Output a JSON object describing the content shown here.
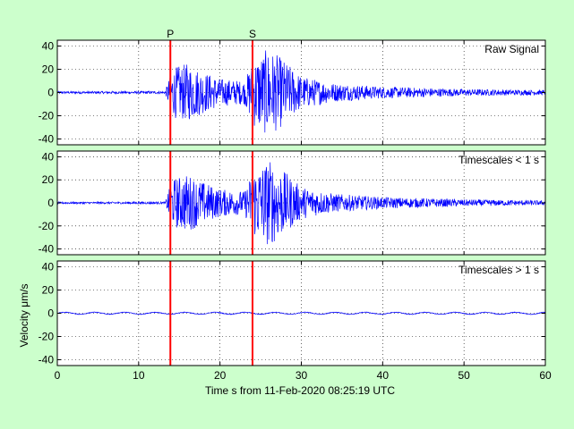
{
  "chart_data": {
    "type": "line",
    "xlabel": "Time s from 11-Feb-2020 08:25:19 UTC",
    "ylabel": "Velocity μm/s",
    "xlim": [
      0,
      60
    ],
    "ylim": [
      -45,
      45
    ],
    "x_ticks": [
      0,
      10,
      20,
      30,
      40,
      50,
      60
    ],
    "y_ticks": [
      40,
      20,
      0,
      -20,
      -40
    ],
    "grid": true,
    "phase_markers": [
      {
        "label": "P",
        "time": 13.9,
        "color": "#ff0000"
      },
      {
        "label": "S",
        "time": 24.0,
        "color": "#ff0000"
      }
    ],
    "panels": [
      {
        "label": "Raw Signal",
        "series_color": "#0000ff",
        "envelope": [
          {
            "t": 0,
            "amp": 1.0
          },
          {
            "t": 13.3,
            "amp": 1.2
          },
          {
            "t": 13.6,
            "amp": 10
          },
          {
            "t": 14.5,
            "amp": 22
          },
          {
            "t": 16,
            "amp": 25
          },
          {
            "t": 18,
            "amp": 18
          },
          {
            "t": 20,
            "amp": 12
          },
          {
            "t": 23,
            "amp": 10
          },
          {
            "t": 24.2,
            "amp": 30
          },
          {
            "t": 26,
            "amp": 38
          },
          {
            "t": 27.5,
            "amp": 30
          },
          {
            "t": 30,
            "amp": 14
          },
          {
            "t": 34,
            "amp": 8
          },
          {
            "t": 40,
            "amp": 5
          },
          {
            "t": 50,
            "amp": 3
          },
          {
            "t": 60,
            "amp": 2
          }
        ]
      },
      {
        "label": "Timescales < 1 s",
        "series_color": "#0000ff",
        "envelope": [
          {
            "t": 0,
            "amp": 0.8
          },
          {
            "t": 13.3,
            "amp": 1.0
          },
          {
            "t": 13.6,
            "amp": 10
          },
          {
            "t": 14.5,
            "amp": 22
          },
          {
            "t": 16,
            "amp": 25
          },
          {
            "t": 18,
            "amp": 18
          },
          {
            "t": 20,
            "amp": 12
          },
          {
            "t": 23,
            "amp": 10
          },
          {
            "t": 24.2,
            "amp": 30
          },
          {
            "t": 26,
            "amp": 38
          },
          {
            "t": 27.5,
            "amp": 30
          },
          {
            "t": 30,
            "amp": 14
          },
          {
            "t": 34,
            "amp": 8
          },
          {
            "t": 40,
            "amp": 5
          },
          {
            "t": 50,
            "amp": 3
          },
          {
            "t": 60,
            "amp": 2
          }
        ]
      },
      {
        "label": "Timescales > 1 s",
        "series_color": "#0000ff",
        "envelope": [
          {
            "t": 0,
            "amp": 1.2
          },
          {
            "t": 60,
            "amp": 1.2
          }
        ]
      }
    ]
  }
}
